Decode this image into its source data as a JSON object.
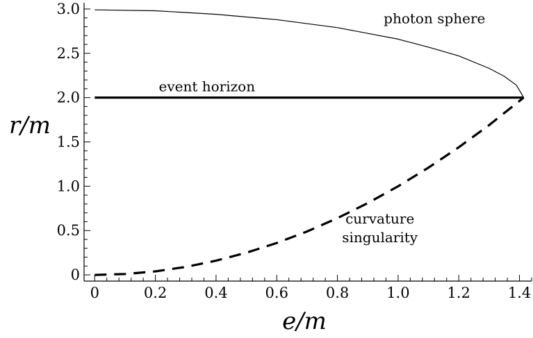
{
  "chart_data": {
    "type": "line",
    "title": "",
    "xlabel": "e/m",
    "ylabel": "r/m",
    "xlim": [
      -0.035,
      1.44
    ],
    "ylim": [
      -0.07,
      3.07
    ],
    "xticks": [
      0,
      0.2,
      0.4,
      0.6,
      0.8,
      1.0,
      1.2,
      1.4
    ],
    "xtick_labels": [
      "0",
      "0.2",
      "0.4",
      "0.6",
      "0.8",
      "1.0",
      "1.2",
      "1.4"
    ],
    "yticks": [
      0,
      0.5,
      1.0,
      1.5,
      2.0,
      2.5,
      3.0
    ],
    "ytick_labels": [
      "0",
      "0.5",
      "1.0",
      "1.5",
      "2.0",
      "2.5",
      "3.0"
    ],
    "grid": false,
    "legend": "none",
    "series": [
      {
        "style": "thin-solid",
        "x": [
          0,
          0.2,
          0.4,
          0.6,
          0.8,
          1.0,
          1.1,
          1.2,
          1.3,
          1.35,
          1.39,
          1.414
        ],
        "y": [
          2.99,
          2.98,
          2.94,
          2.88,
          2.79,
          2.66,
          2.57,
          2.47,
          2.33,
          2.24,
          2.14,
          2.0
        ]
      },
      {
        "style": "thick-solid",
        "x": [
          0,
          1.414
        ],
        "y": [
          2.0,
          2.0
        ]
      },
      {
        "style": "dashed",
        "x": [
          0,
          0.1,
          0.2,
          0.3,
          0.4,
          0.5,
          0.6,
          0.7,
          0.8,
          0.9,
          1.0,
          1.1,
          1.2,
          1.3,
          1.414
        ],
        "y": [
          0.0,
          0.01,
          0.04,
          0.09,
          0.16,
          0.25,
          0.36,
          0.49,
          0.64,
          0.81,
          1.0,
          1.21,
          1.44,
          1.69,
          2.0
        ]
      }
    ],
    "annotations": [
      {
        "text": "photon sphere",
        "x": 1.12,
        "y": 2.84
      },
      {
        "text": "event  horizon",
        "x": 0.37,
        "y": 2.07
      },
      {
        "text": "curvature",
        "x": 0.94,
        "y": 0.58
      },
      {
        "text": "singularity",
        "x": 0.94,
        "y": 0.37
      }
    ]
  }
}
